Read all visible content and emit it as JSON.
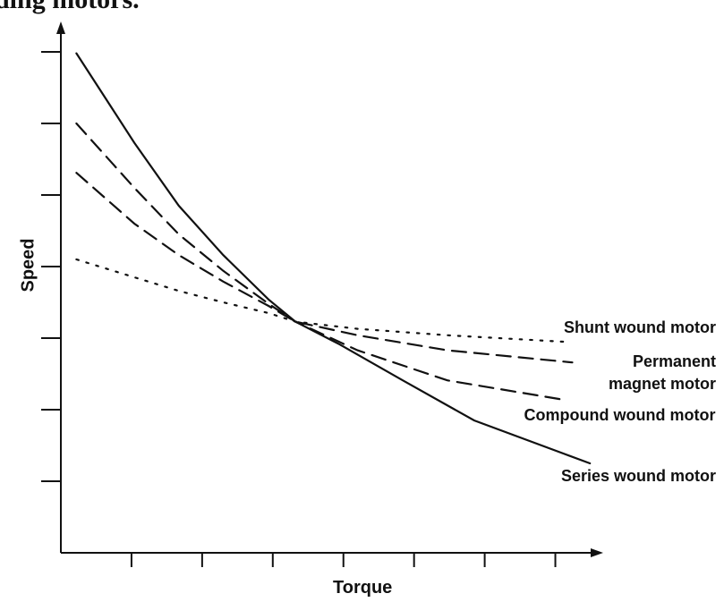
{
  "chart_data": {
    "type": "line",
    "title": "ding motors.",
    "xlabel": "Torque",
    "ylabel": "Speed",
    "xlim": [
      0,
      7.5
    ],
    "ylim": [
      0,
      7.4
    ],
    "xticks": [
      1,
      2,
      3,
      4,
      5,
      6,
      7
    ],
    "yticks": [
      1,
      2,
      3,
      4,
      5,
      6,
      7
    ],
    "series": [
      {
        "name": "Shunt wound motor",
        "color": "#111111",
        "style": "dotted",
        "x": [
          0.22,
          1.04,
          1.67,
          2.3,
          2.94,
          3.32,
          4.2,
          5.47,
          7.11
        ],
        "values": [
          4.1,
          3.85,
          3.66,
          3.5,
          3.35,
          3.23,
          3.13,
          3.04,
          2.95
        ]
      },
      {
        "name": "Permanent magnet motor",
        "color": "#111111",
        "style": "dashed",
        "x": [
          0.22,
          1.04,
          1.67,
          2.3,
          2.94,
          3.32,
          4.2,
          5.47,
          7.24
        ],
        "values": [
          5.31,
          4.6,
          4.16,
          3.79,
          3.45,
          3.23,
          3.04,
          2.83,
          2.66
        ]
      },
      {
        "name": "Compound wound motor",
        "color": "#111111",
        "style": "dashed",
        "x": [
          0.22,
          1.04,
          1.67,
          2.3,
          2.94,
          3.32,
          4.2,
          5.47,
          7.11
        ],
        "values": [
          6.0,
          5.1,
          4.45,
          3.94,
          3.48,
          3.23,
          2.83,
          2.41,
          2.14
        ]
      },
      {
        "name": "Series wound motor",
        "color": "#111111",
        "style": "solid",
        "x": [
          0.22,
          1.04,
          1.67,
          2.3,
          2.94,
          3.32,
          3.95,
          4.84,
          5.85,
          7.49
        ],
        "values": [
          6.98,
          5.73,
          4.85,
          4.16,
          3.54,
          3.23,
          2.91,
          2.41,
          1.85,
          1.25
        ]
      }
    ]
  }
}
